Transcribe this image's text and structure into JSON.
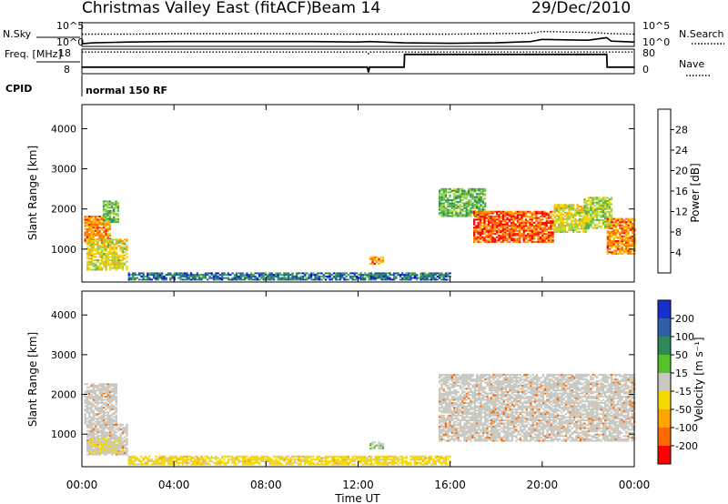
{
  "header": {
    "station": "Christmas Valley East (fitACF)",
    "beam": "Beam 14",
    "date": "29/Dec/2010"
  },
  "colors": {
    "power_scale": [
      "#0000ff",
      "#1e4fa8",
      "#2e8b57",
      "#4caf50",
      "#9bd24a",
      "#f5d800",
      "#ffa500",
      "#ff6a00",
      "#ff0000"
    ],
    "velocity_scale": [
      "#1a2fcf",
      "#2e5fa8",
      "#2e8b57",
      "#55c02a",
      "#c8c8c0",
      "#f5d800",
      "#ffa500",
      "#ff6a00",
      "#ff0000"
    ],
    "ground_scatter": "#c8c8c0"
  },
  "chart_data": [
    {
      "type": "line",
      "panel": "sky-noise",
      "left_label": "N.Sky",
      "right_label": "N.Search",
      "left_ticks": [
        "10^5",
        "10^0"
      ],
      "right_ticks": [
        "10^5",
        "10^0"
      ],
      "series": [
        {
          "name": "N.Sky",
          "style": "solid",
          "x": [
            0,
            0.5,
            2,
            4,
            6,
            8,
            10,
            12,
            12.5,
            14,
            16,
            18,
            19.5,
            20,
            21,
            22,
            22.8,
            23,
            24
          ],
          "y": [
            0.4,
            0.6,
            0.8,
            0.9,
            0.9,
            0.9,
            0.9,
            0.8,
            0.9,
            0.6,
            0.5,
            0.6,
            0.9,
            1.4,
            1.3,
            1.2,
            1.8,
            1.0,
            0.8
          ]
        },
        {
          "name": "N.Search",
          "style": "dotted",
          "x": [
            0,
            2,
            4,
            8,
            12,
            16,
            19.5,
            20,
            22,
            23,
            24
          ],
          "y": [
            2.6,
            2.6,
            2.7,
            2.7,
            2.6,
            2.6,
            2.8,
            3.2,
            3.0,
            2.7,
            2.6
          ]
        }
      ]
    },
    {
      "type": "line",
      "panel": "frequency-nave",
      "left_label": "Freq. [MHz]",
      "right_label": "Nave",
      "left_ticks": [
        "18",
        "8"
      ],
      "right_ticks": [
        "80",
        "0"
      ],
      "series": [
        {
          "name": "Freq.",
          "style": "solid",
          "x": [
            0,
            12.4,
            12.45,
            12.5,
            14,
            14.02,
            22.8,
            22.82,
            24
          ],
          "y": [
            10.6,
            10.6,
            8.2,
            10.6,
            10.6,
            16.4,
            16.4,
            10.6,
            10.6
          ]
        },
        {
          "name": "Nave",
          "style": "dotted",
          "x": [
            0,
            12.4,
            12.45,
            12.5,
            24
          ],
          "y": [
            76,
            76,
            70,
            76,
            76
          ]
        }
      ]
    },
    {
      "type": "heatmap",
      "panel": "cpid",
      "label": "CPID",
      "text": "normal 150 RF"
    },
    {
      "type": "heatmap",
      "panel": "power",
      "ylabel": "Slant Range [km]",
      "xlabel": "Time UT",
      "x_ticks": [
        "00:00",
        "04:00",
        "08:00",
        "12:00",
        "16:00",
        "20:00",
        "00:00"
      ],
      "xlim": [
        0,
        24
      ],
      "y_ticks": [
        "1000",
        "2000",
        "3000",
        "4000"
      ],
      "ylim": [
        180,
        4600
      ],
      "colorbar_label": "Power [dB]",
      "colorbar_ticks": [
        "4",
        "8",
        "12",
        "16",
        "20",
        "24",
        "28"
      ],
      "colorbar_range": [
        0,
        32
      ],
      "regions": [
        {
          "t0": 0.1,
          "t1": 1.2,
          "r0": 1150,
          "r1": 1800,
          "level": 0.8
        },
        {
          "t0": 0.9,
          "t1": 1.6,
          "r0": 1650,
          "r1": 2200,
          "level": 0.4
        },
        {
          "t0": 0.2,
          "t1": 2.0,
          "r0": 450,
          "r1": 1250,
          "level": 0.6
        },
        {
          "t0": 12.5,
          "t1": 13.1,
          "r0": 600,
          "r1": 800,
          "level": 0.8
        },
        {
          "t0": 15.5,
          "t1": 17.5,
          "r0": 1800,
          "r1": 2500,
          "level": 0.4
        },
        {
          "t0": 17.0,
          "t1": 20.5,
          "r0": 1150,
          "r1": 1950,
          "level": 0.9
        },
        {
          "t0": 20.5,
          "t1": 22.0,
          "r0": 1400,
          "r1": 2100,
          "level": 0.6
        },
        {
          "t0": 21.8,
          "t1": 23.0,
          "r0": 1500,
          "r1": 2300,
          "level": 0.5
        },
        {
          "t0": 22.8,
          "t1": 24.0,
          "r0": 850,
          "r1": 1750,
          "level": 0.8
        },
        {
          "t0": 2.0,
          "t1": 16.0,
          "r0": 200,
          "r1": 380,
          "level": 0.2
        }
      ]
    },
    {
      "type": "heatmap",
      "panel": "velocity",
      "ylabel": "Slant Range [km]",
      "xlabel": "Time UT",
      "x_ticks": [
        "00:00",
        "04:00",
        "08:00",
        "12:00",
        "16:00",
        "20:00",
        "00:00"
      ],
      "xlim": [
        0,
        24
      ],
      "y_ticks": [
        "1000",
        "2000",
        "3000",
        "4000"
      ],
      "ylim": [
        180,
        4600
      ],
      "colorbar_label": "Velocity [m s⁻¹]",
      "colorbar_ticks": [
        "200",
        "100",
        "50",
        "15",
        "-15",
        "-50",
        "-100",
        "-200"
      ],
      "colorbar_range": [
        -250,
        250
      ],
      "regions": [
        {
          "t0": 0.1,
          "t1": 1.5,
          "r0": 1200,
          "r1": 2250,
          "level": "ground"
        },
        {
          "t0": 0.2,
          "t1": 2.0,
          "r0": 450,
          "r1": 1250,
          "level": "ground"
        },
        {
          "t0": 0.3,
          "t1": 1.8,
          "r0": 500,
          "r1": 900,
          "level": -30
        },
        {
          "t0": 12.5,
          "t1": 13.1,
          "r0": 600,
          "r1": 800,
          "level": 30
        },
        {
          "t0": 15.5,
          "t1": 24.0,
          "r0": 800,
          "r1": 2500,
          "level": "ground"
        },
        {
          "t0": 2.0,
          "t1": 16.0,
          "r0": 200,
          "r1": 420,
          "level": -60
        }
      ]
    }
  ]
}
